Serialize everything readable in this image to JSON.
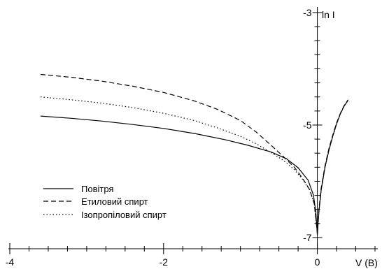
{
  "chart_data": {
    "type": "line",
    "xlabel": "V (В)",
    "ylabel": "ln I",
    "xlim": [
      -4,
      0.75
    ],
    "ylim": [
      -7.1,
      -3
    ],
    "x_ticks": [
      -4,
      -2,
      0
    ],
    "x_tick_labels": [
      "-4",
      "-2",
      "0"
    ],
    "y_ticks": [
      -7,
      -5,
      -3
    ],
    "y_tick_labels": [
      "-7",
      "-5",
      "-3"
    ],
    "grid": false,
    "legend_position": "bottom-left",
    "series": [
      {
        "name": "Повітря",
        "line_style": "solid",
        "points": [
          [
            -3.6,
            -4.84
          ],
          [
            -3.2,
            -4.88
          ],
          [
            -2.8,
            -4.93
          ],
          [
            -2.4,
            -4.99
          ],
          [
            -2.0,
            -5.06
          ],
          [
            -1.6,
            -5.15
          ],
          [
            -1.2,
            -5.26
          ],
          [
            -0.9,
            -5.36
          ],
          [
            -0.6,
            -5.48
          ],
          [
            -0.4,
            -5.6
          ],
          [
            -0.25,
            -5.76
          ],
          [
            -0.12,
            -5.98
          ],
          [
            -0.05,
            -6.25
          ],
          [
            -0.02,
            -6.55
          ],
          [
            0.0,
            -6.95
          ],
          [
            0.02,
            -6.55
          ],
          [
            0.05,
            -6.15
          ],
          [
            0.1,
            -5.75
          ],
          [
            0.15,
            -5.45
          ],
          [
            0.2,
            -5.2
          ],
          [
            0.25,
            -4.98
          ],
          [
            0.3,
            -4.8
          ],
          [
            0.35,
            -4.66
          ],
          [
            0.4,
            -4.56
          ]
        ]
      },
      {
        "name": "Етиловий спирт",
        "line_style": "dashed",
        "points": [
          [
            -3.6,
            -4.1
          ],
          [
            -3.2,
            -4.15
          ],
          [
            -2.8,
            -4.22
          ],
          [
            -2.4,
            -4.31
          ],
          [
            -2.0,
            -4.42
          ],
          [
            -1.6,
            -4.57
          ],
          [
            -1.3,
            -4.72
          ],
          [
            -1.0,
            -4.92
          ],
          [
            -0.8,
            -5.12
          ],
          [
            -0.6,
            -5.36
          ],
          [
            -0.45,
            -5.55
          ],
          [
            -0.3,
            -5.75
          ],
          [
            -0.2,
            -5.93
          ],
          [
            -0.1,
            -6.15
          ],
          [
            -0.04,
            -6.4
          ],
          [
            0.0,
            -6.92
          ],
          [
            0.02,
            -6.5
          ],
          [
            0.05,
            -6.12
          ],
          [
            0.1,
            -5.72
          ],
          [
            0.15,
            -5.42
          ],
          [
            0.2,
            -5.18
          ],
          [
            0.25,
            -4.96
          ],
          [
            0.3,
            -4.79
          ],
          [
            0.35,
            -4.65
          ],
          [
            0.4,
            -4.55
          ]
        ]
      },
      {
        "name": "Ізопропіловий спирт",
        "line_style": "dotted",
        "points": [
          [
            -3.6,
            -4.5
          ],
          [
            -3.2,
            -4.55
          ],
          [
            -2.8,
            -4.61
          ],
          [
            -2.4,
            -4.69
          ],
          [
            -2.0,
            -4.79
          ],
          [
            -1.6,
            -4.92
          ],
          [
            -1.3,
            -5.05
          ],
          [
            -1.0,
            -5.2
          ],
          [
            -0.8,
            -5.33
          ],
          [
            -0.6,
            -5.49
          ],
          [
            -0.45,
            -5.62
          ],
          [
            -0.3,
            -5.79
          ],
          [
            -0.2,
            -5.95
          ],
          [
            -0.1,
            -6.15
          ],
          [
            -0.04,
            -6.4
          ],
          [
            0.0,
            -6.92
          ],
          [
            0.02,
            -6.52
          ],
          [
            0.05,
            -6.14
          ],
          [
            0.1,
            -5.74
          ],
          [
            0.15,
            -5.44
          ],
          [
            0.2,
            -5.19
          ],
          [
            0.25,
            -4.97
          ],
          [
            0.3,
            -4.8
          ],
          [
            0.35,
            -4.66
          ],
          [
            0.4,
            -4.56
          ]
        ]
      }
    ]
  }
}
